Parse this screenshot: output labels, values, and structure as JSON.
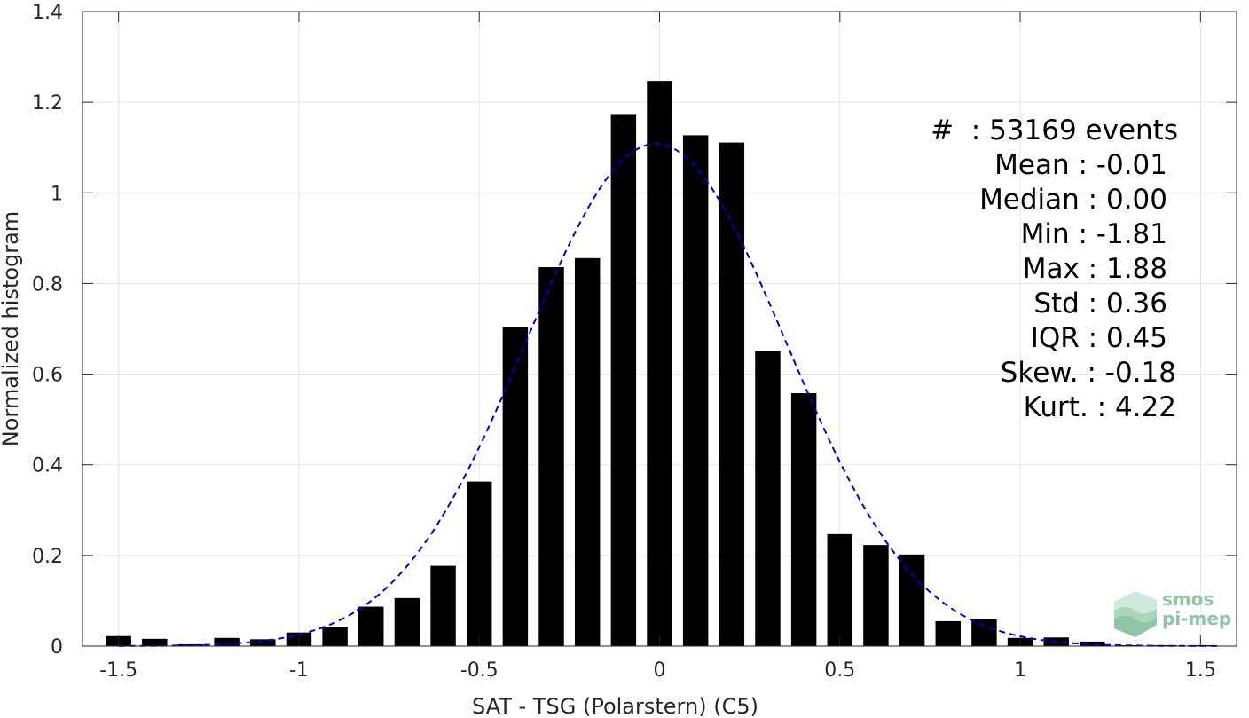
{
  "chart_data": {
    "type": "bar",
    "xlabel": "SAT - TSG (Polarstern) (C5)",
    "ylabel": "Normalized histogram",
    "xlim": [
      -1.6,
      1.6
    ],
    "ylim": [
      0,
      1.4
    ],
    "x_ticks": [
      -1.5,
      -1,
      -0.5,
      0,
      0.5,
      1,
      1.5
    ],
    "x_tick_labels": [
      "-1.5",
      "-1",
      "-0.5",
      "0",
      "0.5",
      "1",
      "1.5"
    ],
    "y_ticks": [
      0,
      0.2,
      0.4,
      0.6,
      0.8,
      1,
      1.2,
      1.4
    ],
    "y_tick_labels": [
      "0",
      "0.2",
      "0.4",
      "0.6",
      "0.8",
      "1",
      "1.2",
      "1.4"
    ],
    "grid": true,
    "bar_width": 0.07,
    "bar_color": "#000000",
    "x": [
      -1.5,
      -1.4,
      -1.3,
      -1.2,
      -1.1,
      -1.0,
      -0.9,
      -0.8,
      -0.7,
      -0.6,
      -0.5,
      -0.4,
      -0.3,
      -0.2,
      -0.1,
      0.0,
      0.1,
      0.2,
      0.3,
      0.4,
      0.5,
      0.6,
      0.7,
      0.8,
      0.9,
      1.0,
      1.1,
      1.2,
      1.3,
      1.4,
      1.5
    ],
    "values": [
      0.022,
      0.016,
      0.004,
      0.018,
      0.015,
      0.03,
      0.042,
      0.087,
      0.106,
      0.177,
      0.363,
      0.704,
      0.836,
      0.856,
      1.172,
      1.247,
      1.127,
      1.111,
      0.651,
      0.558,
      0.247,
      0.223,
      0.202,
      0.055,
      0.059,
      0.018,
      0.019,
      0.01,
      0.002,
      0.002,
      0.002
    ],
    "fit_curve": {
      "type": "normal",
      "mean": -0.01,
      "std": 0.36,
      "color": "#0000cc",
      "style": "dashed"
    }
  },
  "stats": [
    "#  : 53169 events",
    "Mean : -0.01",
    "Median : 0.00",
    "Min : -1.81",
    "Max : 1.88",
    "Std : 0.36",
    "IQR : 0.45",
    "Skew. : -0.18",
    "Kurt. : 4.22"
  ],
  "logo": {
    "line1": "smos",
    "line2": "pi-mep",
    "color": "#8fc4a6"
  }
}
